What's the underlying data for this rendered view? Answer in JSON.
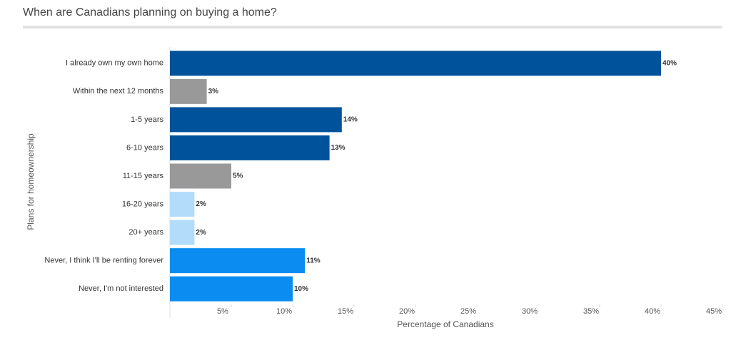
{
  "chart_data": {
    "type": "bar",
    "orientation": "horizontal",
    "title": "When are Canadians planning on buying a home?",
    "x_label": "Percentage of Canadians",
    "y_label": "Plans for homeownership",
    "categories": [
      "I already own my own home",
      "Within the next 12 months",
      "1-5 years",
      "6-10 years",
      "11-15 years",
      "16-20 years",
      "20+ years",
      "Never, I think I'll be renting forever",
      "Never, I'm not interested"
    ],
    "values": [
      40,
      3,
      14,
      13,
      5,
      2,
      2,
      11,
      10
    ],
    "value_labels": [
      "40%",
      "3%",
      "14%",
      "13%",
      "5%",
      "2%",
      "2%",
      "11%",
      "10%"
    ],
    "colors": [
      "#00529b",
      "#999999",
      "#00529b",
      "#00529b",
      "#999999",
      "#b3dcfb",
      "#b3dcfb",
      "#0a8cf0",
      "#0a8cf0"
    ],
    "xlim": [
      0,
      45
    ],
    "xticks": [
      {
        "value": 5,
        "label": "5%"
      },
      {
        "value": 10,
        "label": "10%"
      },
      {
        "value": 15,
        "label": "15%"
      },
      {
        "value": 20,
        "label": "20%"
      },
      {
        "value": 25,
        "label": "25%"
      },
      {
        "value": 30,
        "label": "30%"
      },
      {
        "value": 35,
        "label": "35%"
      },
      {
        "value": 40,
        "label": "40%"
      },
      {
        "value": 45,
        "label": "45%"
      }
    ],
    "grid": false
  }
}
